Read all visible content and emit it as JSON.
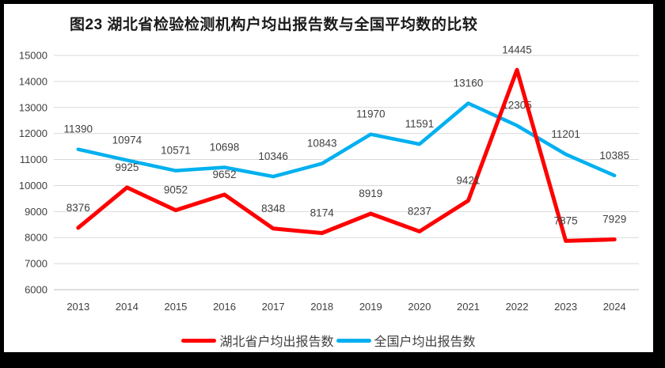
{
  "title": "图23 湖北省检验检测机构户均出报告数与全国平均数的比较",
  "chart_data": {
    "type": "line",
    "title": "图23 湖北省检验检测机构户均出报告数与全国平均数的比较",
    "categories": [
      "2013",
      "2014",
      "2015",
      "2016",
      "2017",
      "2018",
      "2019",
      "2020",
      "2021",
      "2022",
      "2023",
      "2024"
    ],
    "series": [
      {
        "id": "hubei",
        "name": "湖北省户均出报告数",
        "color": "#FF0000",
        "values": [
          8376,
          9925,
          9052,
          9652,
          8348,
          8174,
          8919,
          8237,
          9421,
          14445,
          7875,
          7929
        ]
      },
      {
        "id": "national",
        "name": "全国户均出报告数",
        "color": "#00B0F0",
        "values": [
          11390,
          10974,
          10571,
          10698,
          10346,
          10843,
          11970,
          11591,
          13160,
          12305,
          11201,
          10385
        ]
      }
    ],
    "xlabel": "",
    "ylabel": "",
    "ylim": [
      6000,
      15000
    ],
    "yticks": [
      6000,
      7000,
      8000,
      9000,
      10000,
      11000,
      12000,
      13000,
      14000,
      15000
    ],
    "grid": true,
    "data_labels": true,
    "legend_position": "bottom"
  },
  "colors": {
    "frame": "#000000",
    "background": "#FFFFFF",
    "grid": "#D9D9D9",
    "axis_line": "#BFBFBF",
    "axis_text": "#404040",
    "label_text": "#404040",
    "title_text": "#1A1A1A"
  }
}
